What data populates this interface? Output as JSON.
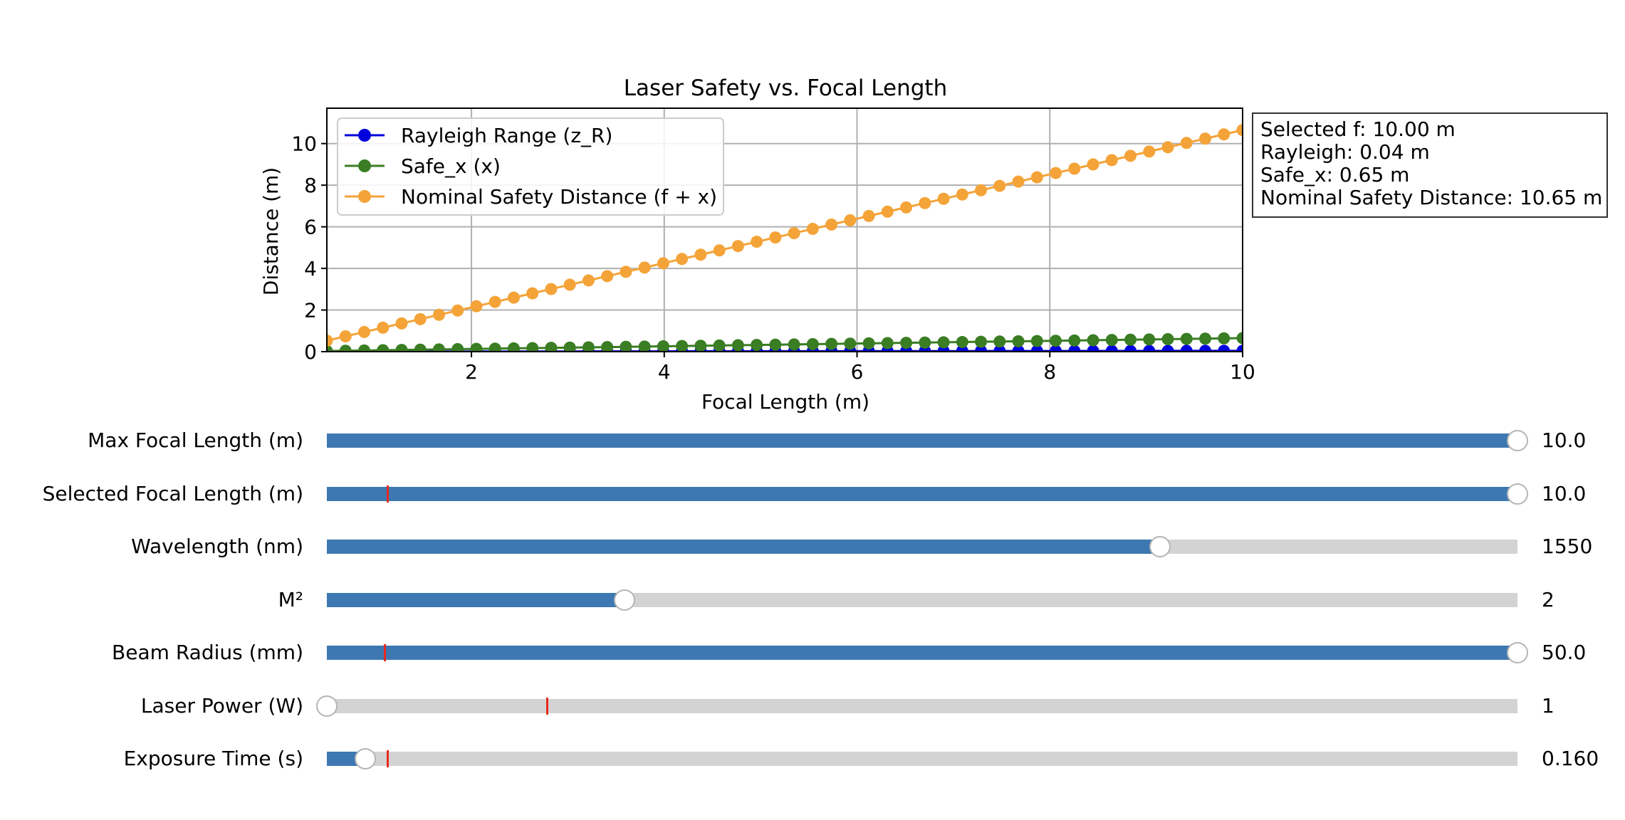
{
  "chart_data": {
    "type": "line",
    "title": "Laser Safety vs. Focal Length",
    "xlabel": "Focal Length (m)",
    "ylabel": "Distance (m)",
    "xlim": [
      0.5,
      10
    ],
    "ylim": [
      0,
      11.7
    ],
    "xticks": [
      2,
      4,
      6,
      8,
      10
    ],
    "yticks": [
      0,
      2,
      4,
      6,
      8,
      10
    ],
    "grid": true,
    "legend_position": "upper-left",
    "x_start": 0.5,
    "x_end": 10.0,
    "points": 50,
    "series": [
      {
        "name": "Rayleigh Range (z_R)",
        "color": "#0000dd",
        "start": 0.0,
        "end": 0.04
      },
      {
        "name": "Safe_x (x)",
        "color": "#3a7d23",
        "start": 0.03,
        "end": 0.65
      },
      {
        "name": "Nominal Safety Distance (f + x)",
        "color": "#f4a338",
        "start": 0.53,
        "end": 10.65
      }
    ]
  },
  "info": {
    "lines": [
      "Selected f: 10.00 m",
      "Rayleigh: 0.04 m",
      "Safe_x: 0.65 m",
      "Nominal Safety Distance: 10.65 m"
    ]
  },
  "sliders": [
    {
      "label": "Max Focal Length (m)",
      "value": "10.0",
      "fraction": 1.0,
      "marker": null
    },
    {
      "label": "Selected Focal Length (m)",
      "value": "10.0",
      "fraction": 1.0,
      "marker": 0.05
    },
    {
      "label": "Wavelength (nm)",
      "value": "1550",
      "fraction": 0.7,
      "marker": null
    },
    {
      "label": "M²",
      "value": "2",
      "fraction": 0.25,
      "marker": null
    },
    {
      "label": "Beam Radius (mm)",
      "value": "50.0",
      "fraction": 1.0,
      "marker": 0.048
    },
    {
      "label": "Laser Power (W)",
      "value": "1",
      "fraction": 0.0,
      "marker": 0.184
    },
    {
      "label": "Exposure Time (s)",
      "value": "0.160",
      "fraction": 0.032,
      "marker": 0.05
    }
  ],
  "colors": {
    "slider_fill": "#3d78b2",
    "slider_track": "#d3d3d3",
    "marker": "#e8291c"
  }
}
